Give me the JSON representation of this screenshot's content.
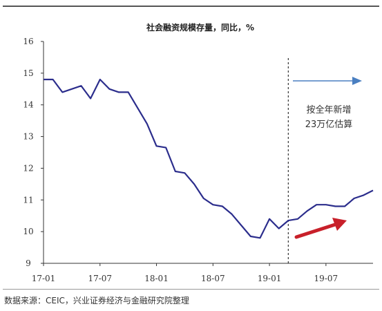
{
  "chart_data": {
    "type": "line",
    "title": "社会融资规模存量，同比，%",
    "xlabel": "",
    "ylabel": "",
    "ylim": [
      9,
      16
    ],
    "y_ticks": [
      9,
      10,
      11,
      12,
      13,
      14,
      15,
      16
    ],
    "x_tick_labels": [
      "17-01",
      "17-07",
      "18-01",
      "18-07",
      "19-01",
      "19-07"
    ],
    "x_tick_months": [
      0,
      6,
      12,
      18,
      24,
      30
    ],
    "x_month_range": [
      0,
      35
    ],
    "series": [
      {
        "name": "",
        "color": "#2b2d8c",
        "x": [
          0,
          1,
          2,
          3,
          4,
          5,
          6,
          7,
          8,
          9,
          10,
          11,
          12,
          13,
          14,
          15,
          16,
          17,
          18,
          19,
          20,
          21,
          22,
          23,
          24,
          25,
          26,
          27,
          28,
          29,
          30,
          31,
          32,
          33,
          34,
          35
        ],
        "values": [
          14.8,
          14.8,
          14.4,
          14.5,
          14.6,
          14.2,
          14.8,
          14.5,
          14.4,
          14.4,
          13.9,
          13.4,
          12.7,
          12.65,
          11.9,
          11.85,
          11.5,
          11.05,
          10.85,
          10.8,
          10.55,
          10.2,
          9.85,
          9.8,
          10.4,
          10.1,
          10.35,
          10.4,
          10.65,
          10.85,
          10.85,
          10.8,
          10.8,
          11.05,
          11.15,
          11.3
        ]
      }
    ],
    "projection_start_month": 26,
    "annotation": {
      "line1": "按全年新增",
      "line2": "23万亿估算"
    },
    "arrow_colors": {
      "blue": "#4a7fc1",
      "red": "#c8202a"
    }
  },
  "source": "数据来源：CEIC，兴业证券经济与金融研究院整理"
}
